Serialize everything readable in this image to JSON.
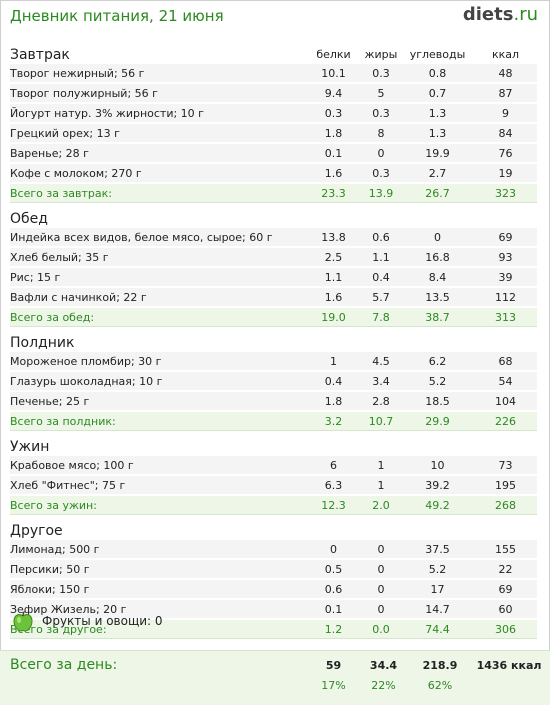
{
  "header": {
    "title": "Дневник питания, 21 июня",
    "logo_name": "diets",
    "logo_tld": ".ru"
  },
  "columns": {
    "protein": "белки",
    "fat": "жиры",
    "carbs": "углеводы",
    "kcal": "ккал"
  },
  "meals": [
    {
      "title": "Завтрак",
      "items": [
        {
          "name": "Творог нежирный; 56 г",
          "p": "10.1",
          "f": "0.3",
          "c": "0.8",
          "k": "48"
        },
        {
          "name": "Творог полужирный; 56 г",
          "p": "9.4",
          "f": "5",
          "c": "0.7",
          "k": "87"
        },
        {
          "name": "Йогурт натур. 3% жирности; 10 г",
          "p": "0.3",
          "f": "0.3",
          "c": "1.3",
          "k": "9"
        },
        {
          "name": "Грецкий орех; 13 г",
          "p": "1.8",
          "f": "8",
          "c": "1.3",
          "k": "84"
        },
        {
          "name": "Варенье; 28 г",
          "p": "0.1",
          "f": "0",
          "c": "19.9",
          "k": "76"
        },
        {
          "name": "Кофе с молоком; 270 г",
          "p": "1.6",
          "f": "0.3",
          "c": "2.7",
          "k": "19"
        }
      ],
      "total": {
        "label": "Всего за завтрак:",
        "p": "23.3",
        "f": "13.9",
        "c": "26.7",
        "k": "323"
      }
    },
    {
      "title": "Обед",
      "items": [
        {
          "name": "Индейка всех видов, белое мясо, сырое; 60 г",
          "p": "13.8",
          "f": "0.6",
          "c": "0",
          "k": "69"
        },
        {
          "name": "Хлеб белый; 35 г",
          "p": "2.5",
          "f": "1.1",
          "c": "16.8",
          "k": "93"
        },
        {
          "name": "Рис; 15 г",
          "p": "1.1",
          "f": "0.4",
          "c": "8.4",
          "k": "39"
        },
        {
          "name": "Вафли с начинкой; 22 г",
          "p": "1.6",
          "f": "5.7",
          "c": "13.5",
          "k": "112"
        }
      ],
      "total": {
        "label": "Всего за обед:",
        "p": "19.0",
        "f": "7.8",
        "c": "38.7",
        "k": "313"
      }
    },
    {
      "title": "Полдник",
      "items": [
        {
          "name": "Мороженое пломбир; 30 г",
          "p": "1",
          "f": "4.5",
          "c": "6.2",
          "k": "68"
        },
        {
          "name": "Глазурь шоколадная; 10 г",
          "p": "0.4",
          "f": "3.4",
          "c": "5.2",
          "k": "54"
        },
        {
          "name": "Печенье; 25 г",
          "p": "1.8",
          "f": "2.8",
          "c": "18.5",
          "k": "104"
        }
      ],
      "total": {
        "label": "Всего за полдник:",
        "p": "3.2",
        "f": "10.7",
        "c": "29.9",
        "k": "226"
      }
    },
    {
      "title": "Ужин",
      "items": [
        {
          "name": "Крабовое мясо; 100 г",
          "p": "6",
          "f": "1",
          "c": "10",
          "k": "73"
        },
        {
          "name": "Хлеб \"Фитнес\"; 75 г",
          "p": "6.3",
          "f": "1",
          "c": "39.2",
          "k": "195"
        }
      ],
      "total": {
        "label": "Всего за ужин:",
        "p": "12.3",
        "f": "2.0",
        "c": "49.2",
        "k": "268"
      }
    },
    {
      "title": "Другое",
      "items": [
        {
          "name": "Лимонад; 500 г",
          "p": "0",
          "f": "0",
          "c": "37.5",
          "k": "155"
        },
        {
          "name": "Персики; 50 г",
          "p": "0.5",
          "f": "0",
          "c": "5.2",
          "k": "22"
        },
        {
          "name": "Яблоки; 150 г",
          "p": "0.6",
          "f": "0",
          "c": "17",
          "k": "69"
        },
        {
          "name": "Зефир Жизель; 20 г",
          "p": "0.1",
          "f": "0",
          "c": "14.7",
          "k": "60"
        }
      ],
      "total": {
        "label": "Всего за другое:",
        "p": "1.2",
        "f": "0.0",
        "c": "74.4",
        "k": "306"
      }
    }
  ],
  "fruits": {
    "icon": "apple-icon",
    "label": "Фрукты и овощи: 0"
  },
  "day_total": {
    "label": "Всего за день:",
    "p": "59",
    "f": "34.4",
    "c": "218.9",
    "k": "1436 ккал",
    "p_pct": "17%",
    "f_pct": "22%",
    "c_pct": "62%"
  },
  "colors": {
    "accent": "#2b8a1f",
    "row_bg": "#f4f4f4",
    "total_bg": "#eef6e8"
  }
}
